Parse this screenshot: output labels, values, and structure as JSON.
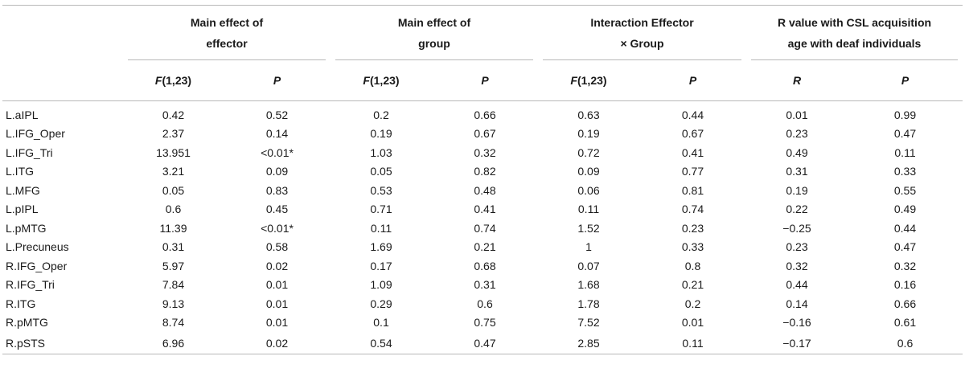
{
  "headers": {
    "groups": [
      {
        "line1": "Main effect of",
        "line2": "effector"
      },
      {
        "line1": "Main effect of",
        "line2": "group"
      },
      {
        "line1": "Interaction Effector",
        "line2": "× Group"
      },
      {
        "line1": "R value with CSL acquisition",
        "line2": "age with deaf individuals"
      }
    ],
    "sub": {
      "f_label": "F",
      "f_df": "(1,23)",
      "p": "P",
      "r": "R"
    }
  },
  "rows": [
    {
      "region": "L.aIPL",
      "vals": [
        "0.42",
        "0.52",
        "0.2",
        "0.66",
        "0.63",
        "0.44",
        "0.01",
        "0.99"
      ]
    },
    {
      "region": "L.IFG_Oper",
      "vals": [
        "2.37",
        "0.14",
        "0.19",
        "0.67",
        "0.19",
        "0.67",
        "0.23",
        "0.47"
      ]
    },
    {
      "region": "L.IFG_Tri",
      "vals": [
        "13.951",
        "<0.01*",
        "1.03",
        "0.32",
        "0.72",
        "0.41",
        "0.49",
        "0.11"
      ]
    },
    {
      "region": "L.ITG",
      "vals": [
        "3.21",
        "0.09",
        "0.05",
        "0.82",
        "0.09",
        "0.77",
        "0.31",
        "0.33"
      ]
    },
    {
      "region": "L.MFG",
      "vals": [
        "0.05",
        "0.83",
        "0.53",
        "0.48",
        "0.06",
        "0.81",
        "0.19",
        "0.55"
      ]
    },
    {
      "region": "L.pIPL",
      "vals": [
        "0.6",
        "0.45",
        "0.71",
        "0.41",
        "0.11",
        "0.74",
        "0.22",
        "0.49"
      ]
    },
    {
      "region": "L.pMTG",
      "vals": [
        "11.39",
        "<0.01*",
        "0.11",
        "0.74",
        "1.52",
        "0.23",
        "−0.25",
        "0.44"
      ]
    },
    {
      "region": "L.Precuneus",
      "vals": [
        "0.31",
        "0.58",
        "1.69",
        "0.21",
        "1",
        "0.33",
        "0.23",
        "0.47"
      ]
    },
    {
      "region": "R.IFG_Oper",
      "vals": [
        "5.97",
        "0.02",
        "0.17",
        "0.68",
        "0.07",
        "0.8",
        "0.32",
        "0.32"
      ]
    },
    {
      "region": "R.IFG_Tri",
      "vals": [
        "7.84",
        "0.01",
        "1.09",
        "0.31",
        "1.68",
        "0.21",
        "0.44",
        "0.16"
      ]
    },
    {
      "region": "R.ITG",
      "vals": [
        "9.13",
        "0.01",
        "0.29",
        "0.6",
        "1.78",
        "0.2",
        "0.14",
        "0.66"
      ]
    },
    {
      "region": "R.pMTG",
      "vals": [
        "8.74",
        "0.01",
        "0.1",
        "0.75",
        "7.52",
        "0.01",
        "−0.16",
        "0.61"
      ]
    },
    {
      "region": "R.pSTS",
      "vals": [
        "6.96",
        "0.02",
        "0.54",
        "0.47",
        "2.85",
        "0.11",
        "−0.17",
        "0.6"
      ]
    }
  ]
}
